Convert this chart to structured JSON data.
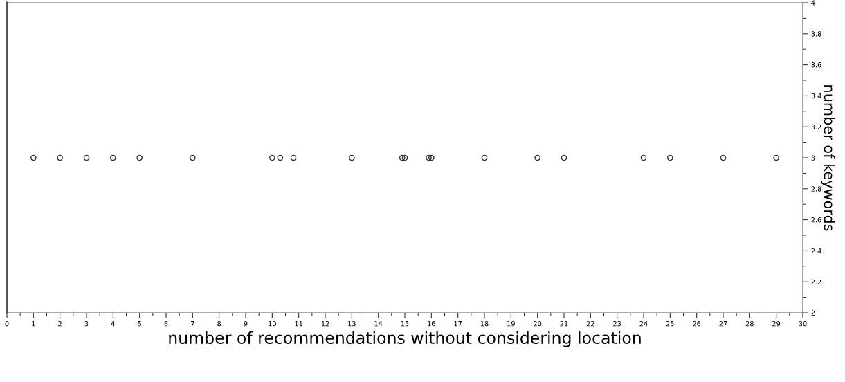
{
  "chart_data": {
    "type": "scatter",
    "xlabel": "number of recommendations without considering location",
    "ylabel": "number of keywords",
    "x": [
      1,
      2,
      3,
      4,
      5,
      7,
      10,
      10.3,
      10.8,
      13,
      14.9,
      15,
      15.9,
      16,
      18,
      20,
      21,
      24,
      25,
      27,
      29
    ],
    "series": [
      {
        "color": "#333333",
        "values": [
          3,
          3,
          3,
          3,
          3,
          3,
          3,
          3,
          3,
          3,
          3,
          3,
          3,
          3,
          3,
          3,
          3,
          3,
          3,
          3,
          3
        ]
      }
    ],
    "marker": "circle",
    "xlim": [
      0,
      30
    ],
    "xticks": [
      0,
      1,
      2,
      3,
      4,
      5,
      6,
      7,
      8,
      9,
      10,
      11,
      12,
      13,
      14,
      15,
      16,
      17,
      18,
      19,
      20,
      21,
      22,
      23,
      24,
      25,
      26,
      27,
      28,
      29,
      30
    ],
    "ylim": [
      2,
      4
    ],
    "yticks": [
      2,
      2.2,
      2.4,
      2.6,
      2.8,
      3,
      3.2,
      3.4,
      3.6,
      3.8,
      4
    ],
    "grid": false
  }
}
